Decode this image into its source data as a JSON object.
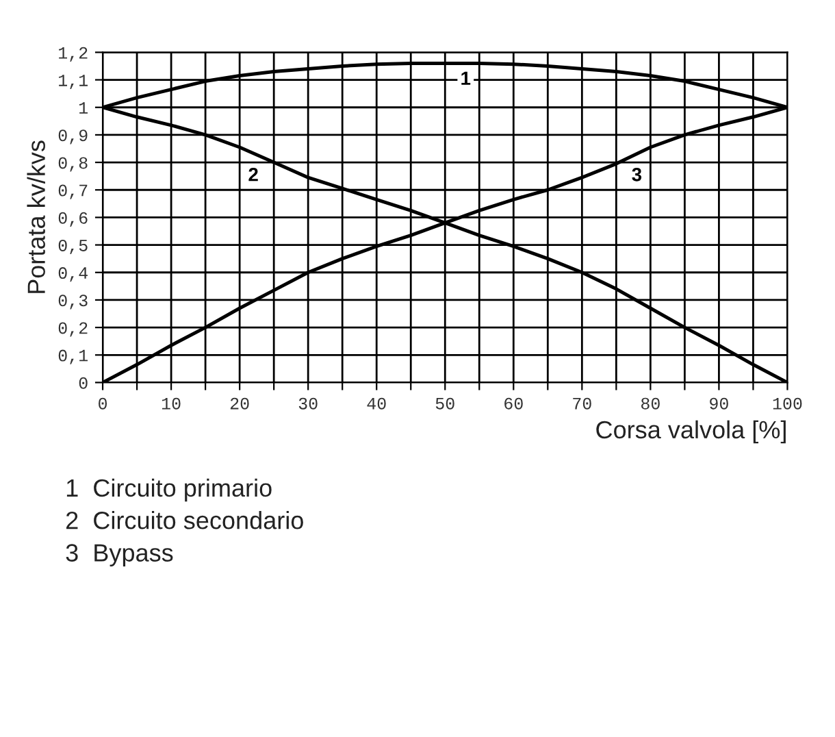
{
  "chart_data": {
    "type": "line",
    "xlabel": "Corsa valvola [%]",
    "ylabel": "Portata kv/kvs",
    "x": [
      0,
      5,
      10,
      15,
      20,
      25,
      30,
      35,
      40,
      45,
      50,
      55,
      60,
      65,
      70,
      75,
      80,
      85,
      90,
      95,
      100
    ],
    "series": [
      {
        "color": "#000000",
        "values": [
          1.0,
          1.035,
          1.065,
          1.095,
          1.115,
          1.13,
          1.14,
          1.15,
          1.157,
          1.16,
          1.16,
          1.16,
          1.157,
          1.15,
          1.14,
          1.13,
          1.115,
          1.095,
          1.065,
          1.035,
          1.0
        ]
      },
      {
        "color": "#000000",
        "values": [
          1.0,
          0.965,
          0.935,
          0.9,
          0.855,
          0.8,
          0.745,
          0.705,
          0.665,
          0.625,
          0.58,
          0.535,
          0.495,
          0.45,
          0.4,
          0.34,
          0.27,
          0.2,
          0.135,
          0.065,
          0.0
        ]
      },
      {
        "color": "#000000",
        "values": [
          0.0,
          0.065,
          0.135,
          0.2,
          0.27,
          0.335,
          0.4,
          0.45,
          0.495,
          0.535,
          0.58,
          0.625,
          0.665,
          0.7,
          0.745,
          0.795,
          0.855,
          0.9,
          0.935,
          0.965,
          1.0
        ]
      }
    ],
    "xlim": [
      0,
      100
    ],
    "xticks": [
      0,
      {
        "value": 5,
        "label": null
      },
      10,
      {
        "value": 15,
        "label": null
      },
      20,
      {
        "value": 25,
        "label": null
      },
      30,
      {
        "value": 35,
        "label": null
      },
      40,
      {
        "value": 45,
        "label": null
      },
      50,
      {
        "value": 55,
        "label": null
      },
      60,
      {
        "value": 65,
        "label": null
      },
      70,
      {
        "value": 75,
        "label": null
      },
      80,
      {
        "value": 85,
        "label": null
      },
      90,
      {
        "value": 95,
        "label": null
      },
      100
    ],
    "ylim": [
      0,
      1.2
    ],
    "yticks": [
      0,
      {
        "value": 0.1,
        "label": "0,1"
      },
      {
        "value": 0.2,
        "label": "0,2"
      },
      {
        "value": 0.3,
        "label": "0,3"
      },
      {
        "value": 0.4,
        "label": "0,4"
      },
      {
        "value": 0.5,
        "label": "0,5"
      },
      {
        "value": 0.6,
        "label": "0,6"
      },
      {
        "value": 0.7,
        "label": "0,7"
      },
      {
        "value": 0.8,
        "label": "0,8"
      },
      {
        "value": 0.9,
        "label": "0,9"
      },
      1,
      {
        "value": 1.1,
        "label": "1,1"
      },
      {
        "value": 1.2,
        "label": "1,2"
      }
    ],
    "grid": true,
    "marker": "none",
    "line_style": "solid",
    "annotations": [
      {
        "text": "1",
        "x": 53,
        "y": 1.1
      },
      {
        "text": "2",
        "x": 22,
        "y": 0.75
      },
      {
        "text": "3",
        "x": 78,
        "y": 0.75
      },
      "1  Circuito primario",
      "2  Circuito secondario",
      "3  Bypass"
    ]
  }
}
